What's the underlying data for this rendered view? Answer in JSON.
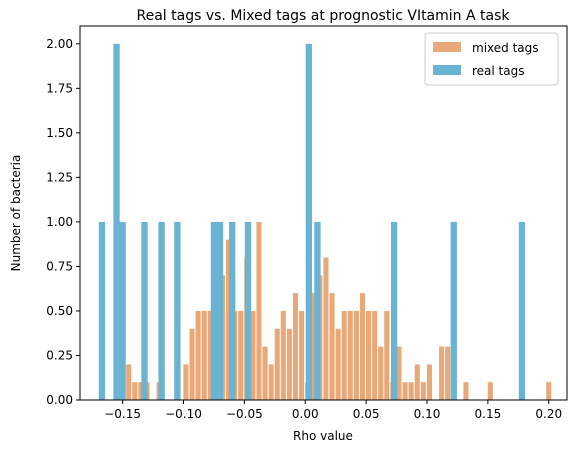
{
  "chart_data": {
    "type": "bar",
    "title": "Real tags vs. Mixed tags at prognostic VItamin A task",
    "xlabel": "Rho value",
    "ylabel": "Number of bacteria",
    "xlim": [
      -0.185,
      0.215
    ],
    "ylim": [
      0,
      2.1
    ],
    "xticks": [
      -0.15,
      -0.1,
      -0.05,
      0.0,
      0.05,
      0.1,
      0.15,
      0.2
    ],
    "xtick_labels": [
      "−0.15",
      "−0.10",
      "−0.05",
      "0.00",
      "0.05",
      "0.10",
      "0.15",
      "0.20"
    ],
    "yticks": [
      0,
      0.25,
      0.5,
      0.75,
      1.0,
      1.25,
      1.5,
      1.75,
      2.0
    ],
    "ytick_labels": [
      "0.00",
      "0.25",
      "0.50",
      "0.75",
      "1.00",
      "1.25",
      "1.50",
      "1.75",
      "2.00"
    ],
    "legend_position": "top-right",
    "series": [
      {
        "name": "mixed tags",
        "color": "#e9a878",
        "bar_width": 0.0042,
        "x": [
          -0.145,
          -0.14,
          -0.135,
          -0.13,
          -0.125,
          -0.12,
          -0.114,
          -0.108,
          -0.103,
          -0.098,
          -0.093,
          -0.088,
          -0.083,
          -0.078,
          -0.073,
          -0.068,
          -0.063,
          -0.058,
          -0.053,
          -0.048,
          -0.043,
          -0.038,
          -0.033,
          -0.028,
          -0.023,
          -0.018,
          -0.013,
          -0.008,
          -0.003,
          0.002,
          0.007,
          0.012,
          0.017,
          0.022,
          0.027,
          0.032,
          0.037,
          0.042,
          0.047,
          0.052,
          0.057,
          0.062,
          0.067,
          0.072,
          0.077,
          0.082,
          0.087,
          0.092,
          0.097,
          0.102,
          0.107,
          0.112,
          0.117,
          0.122,
          0.127,
          0.132,
          0.137,
          0.142,
          0.147,
          0.152,
          0.2
        ],
        "values": [
          0.2,
          0.1,
          0.1,
          0.1,
          0.0,
          0.1,
          0.0,
          0.0,
          0.0,
          0.2,
          0.4,
          0.5,
          0.5,
          0.5,
          0.5,
          0.7,
          0.9,
          0.5,
          0.5,
          0.8,
          0.5,
          1.0,
          0.3,
          0.2,
          0.4,
          0.5,
          0.4,
          0.6,
          0.5,
          0.1,
          0.6,
          0.7,
          0.8,
          0.6,
          0.4,
          0.5,
          0.5,
          0.5,
          0.6,
          0.5,
          0.5,
          0.3,
          0.5,
          0.1,
          0.3,
          0.1,
          0.1,
          0.2,
          0.1,
          0.2,
          0.0,
          0.3,
          0.3,
          0.2,
          0.0,
          0.1,
          0.0,
          0.0,
          0.0,
          0.1,
          0.1
        ]
      },
      {
        "name": "real tags",
        "color": "#6ab3d3",
        "bar_width": 0.0052,
        "x": [
          -0.167,
          -0.155,
          -0.15,
          -0.132,
          -0.118,
          -0.105,
          -0.075,
          -0.07,
          -0.06,
          -0.047,
          0.003,
          0.01,
          0.073,
          0.122,
          0.178
        ],
        "values": [
          1,
          2,
          1,
          1,
          1,
          1,
          1,
          1,
          1,
          1,
          2,
          1,
          1,
          1,
          1
        ]
      }
    ]
  }
}
